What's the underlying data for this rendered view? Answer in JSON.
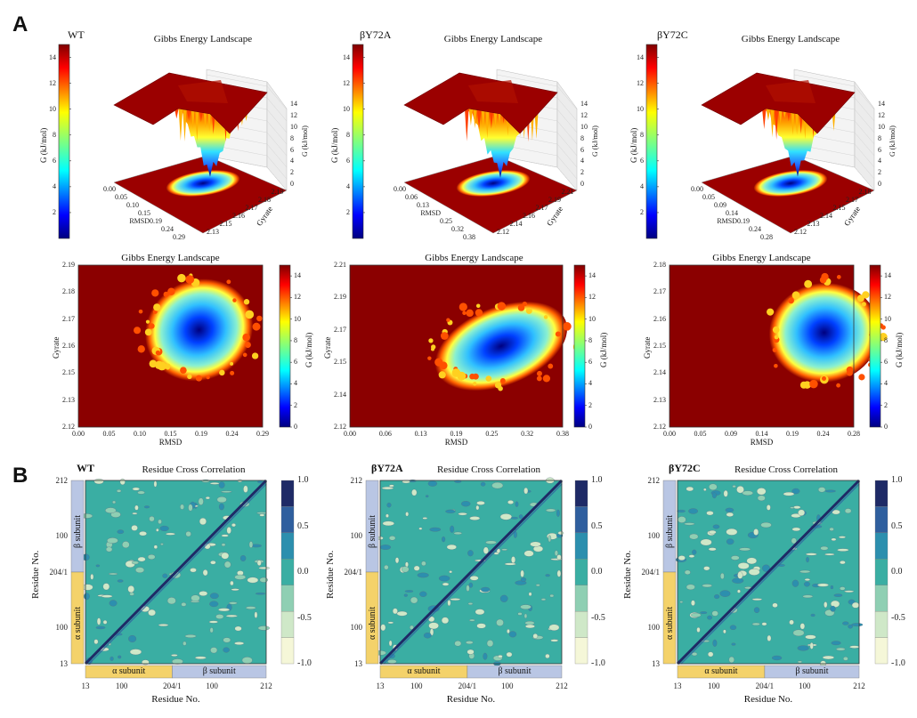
{
  "panel_labels": {
    "a": "A",
    "b": "B"
  },
  "colors": {
    "hot": "#8b0000",
    "cold": "#00007f",
    "teal": "#3aaea3",
    "alpha_band": "#f4d26a",
    "beta_band": "#b9c6e4"
  },
  "chart_data": [
    {
      "id": "wt-3d",
      "type": "surface",
      "variant": "WT",
      "title": "Gibbs Energy Landscape",
      "xlabel": "RMSD",
      "ylabel": "Gyrate",
      "zlabel": "G (kJ/mol)",
      "x_ticks": [
        "0.00",
        "0.05",
        "0.10",
        "0.15",
        "RMSD0.19",
        "0.24",
        "0.29"
      ],
      "y_ticks": [
        "2.13",
        "2.15",
        "2.16",
        "2.17",
        "2.18",
        "2.19"
      ],
      "z_ticks": [
        "0",
        "2",
        "4",
        "6",
        "8",
        "10",
        "12",
        "14"
      ],
      "colorbar": {
        "label": "G (kJ/mol)",
        "ticks": [
          "2",
          "4",
          "6",
          "8",
          "10",
          "12",
          "14"
        ],
        "range": [
          0,
          15
        ]
      }
    },
    {
      "id": "y72a-3d",
      "type": "surface",
      "variant": "βY72A",
      "title": "Gibbs Energy Landscape",
      "xlabel": "RMSD",
      "ylabel": "Gyrate",
      "zlabel": "G (kJ/mol)",
      "x_ticks": [
        "0.00",
        "0.06",
        "0.13",
        "RMSD",
        "0.25",
        "0.32",
        "0.38"
      ],
      "y_ticks": [
        "2.12",
        "2.14",
        "2.16",
        "2.17",
        "2.19",
        "2.21"
      ],
      "z_ticks": [
        "0",
        "2",
        "4",
        "6",
        "8",
        "10",
        "12",
        "14"
      ],
      "colorbar": {
        "label": "G (kJ/mol)",
        "ticks": [
          "2",
          "4",
          "6",
          "8",
          "10",
          "12",
          "14"
        ],
        "range": [
          0,
          15
        ]
      }
    },
    {
      "id": "y72c-3d",
      "type": "surface",
      "variant": "βY72C",
      "title": "Gibbs Energy Landscape",
      "xlabel": "RMSD",
      "ylabel": "Gyrate",
      "zlabel": "G (kJ/mol)",
      "x_ticks": [
        "0.00",
        "0.05",
        "0.09",
        "0.14",
        "RMSD0.19",
        "0.24",
        "0.28"
      ],
      "y_ticks": [
        "2.12",
        "2.13",
        "2.14",
        "2.15",
        "2.17",
        "2.18"
      ],
      "z_ticks": [
        "0",
        "2",
        "4",
        "6",
        "8",
        "10",
        "12",
        "14"
      ],
      "colorbar": {
        "label": "G (kJ/mol)",
        "ticks": [
          "2",
          "4",
          "6",
          "8",
          "10",
          "12",
          "14"
        ],
        "range": [
          0,
          15
        ]
      }
    },
    {
      "id": "wt-2d",
      "type": "heatmap",
      "title": "Gibbs Energy Landscape",
      "xlabel": "RMSD",
      "ylabel": "Gyrate",
      "x_ticks": [
        "0.00",
        "0.05",
        "0.10",
        "0.15",
        "0.19",
        "0.24",
        "0.29"
      ],
      "y_ticks": [
        "2.12",
        "2.13",
        "2.15",
        "2.16",
        "2.17",
        "2.18",
        "2.19"
      ],
      "colorbar": {
        "label": "G (kJ/mol)",
        "ticks": [
          "0",
          "2",
          "4",
          "6",
          "8",
          "10",
          "12",
          "14"
        ],
        "range": [
          0,
          15
        ]
      },
      "basin": {
        "x": 0.19,
        "y": 2.162
      }
    },
    {
      "id": "y72a-2d",
      "type": "heatmap",
      "title": "Gibbs Energy Landscape",
      "xlabel": "RMSD",
      "ylabel": "Gyrate",
      "x_ticks": [
        "0.00",
        "0.06",
        "0.13",
        "0.19",
        "0.25",
        "0.32",
        "0.38"
      ],
      "y_ticks": [
        "2.12",
        "2.14",
        "2.15",
        "2.17",
        "2.19",
        "2.21"
      ],
      "colorbar": {
        "label": "G (kJ/mol)",
        "ticks": [
          "0",
          "2",
          "4",
          "6",
          "8",
          "10",
          "12",
          "14"
        ],
        "range": [
          0,
          15
        ]
      },
      "basin": {
        "x": 0.27,
        "y": 2.165
      }
    },
    {
      "id": "y72c-2d",
      "type": "heatmap",
      "title": "Gibbs Energy Landscape",
      "xlabel": "RMSD",
      "ylabel": "Gyrate",
      "x_ticks": [
        "0.00",
        "0.05",
        "0.09",
        "0.14",
        "0.19",
        "0.24",
        "0.28"
      ],
      "y_ticks": [
        "2.12",
        "2.13",
        "2.14",
        "2.15",
        "2.16",
        "2.17",
        "2.18"
      ],
      "colorbar": {
        "label": "G (kJ/mol)",
        "ticks": [
          "0",
          "2",
          "4",
          "6",
          "8",
          "10",
          "12",
          "14"
        ],
        "range": [
          0,
          15
        ]
      },
      "basin": {
        "x": 0.235,
        "y": 2.155
      }
    },
    {
      "id": "wt-dccm",
      "type": "heatmap",
      "variant": "WT",
      "title": "Residue Cross Correlation",
      "xlabel": "Residue No.",
      "ylabel": "Residue No.",
      "x_ticks": [
        "13",
        "100",
        "204/1",
        "100",
        "212"
      ],
      "y_ticks": [
        "212",
        "100",
        "204/1",
        "100",
        "13"
      ],
      "bands": {
        "alpha": "α subunit",
        "beta": "β subunit"
      },
      "colorbar": {
        "ticks": [
          "1.0",
          "0.5",
          "0.0",
          "-0.5",
          "-1.0"
        ],
        "range": [
          -1,
          1
        ]
      }
    },
    {
      "id": "y72a-dccm",
      "type": "heatmap",
      "variant": "βY72A",
      "title": "Residue Cross Correlation",
      "xlabel": "Residue No.",
      "ylabel": "Residue No.",
      "x_ticks": [
        "13",
        "100",
        "204/1",
        "100",
        "212"
      ],
      "y_ticks": [
        "212",
        "100",
        "204/1",
        "100",
        "13"
      ],
      "bands": {
        "alpha": "α subunit",
        "beta": "β subunit"
      },
      "colorbar": {
        "ticks": [
          "1.0",
          "0.5",
          "0.0",
          "-0.5",
          "-1.0"
        ],
        "range": [
          -1,
          1
        ]
      }
    },
    {
      "id": "y72c-dccm",
      "type": "heatmap",
      "variant": "βY72C",
      "title": "Residue Cross Correlation",
      "xlabel": "Residue No.",
      "ylabel": "Residue No.",
      "x_ticks": [
        "13",
        "100",
        "204/1",
        "100",
        "212"
      ],
      "y_ticks": [
        "212",
        "100",
        "204/1",
        "100",
        "13"
      ],
      "bands": {
        "alpha": "α subunit",
        "beta": "β subunit"
      },
      "colorbar": {
        "ticks": [
          "1.0",
          "0.5",
          "0.0",
          "-0.5",
          "-1.0"
        ],
        "range": [
          -1,
          1
        ]
      }
    }
  ]
}
